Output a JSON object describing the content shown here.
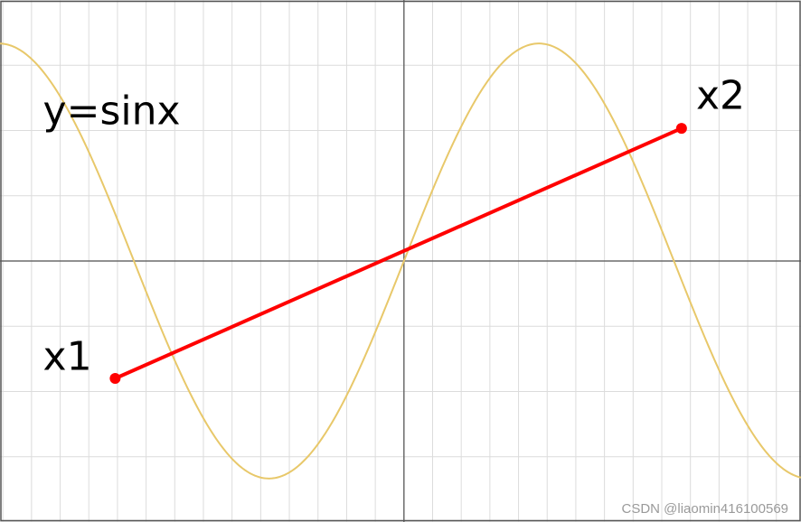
{
  "chart_data": {
    "type": "line",
    "title": "",
    "xlabel": "",
    "ylabel": "",
    "xlim": [
      -4.7,
      4.62
    ],
    "ylim": [
      -1.2,
      1.2
    ],
    "grid": true,
    "series": [
      {
        "function": "sin",
        "color": "#e8c86a",
        "x_range": [
          -4.7,
          4.62
        ]
      },
      {
        "x": [
          -3.36,
          3.23
        ],
        "y": [
          -0.54,
          0.61
        ],
        "color": "#ff0000",
        "markers": true
      }
    ],
    "annotations": [
      {
        "text": "y=sinx",
        "x": -4.2,
        "y": 0.63
      },
      {
        "text": "x1",
        "x": -4.2,
        "y": -0.5
      },
      {
        "text": "x2",
        "x": 3.4,
        "y": 0.7
      }
    ]
  },
  "watermark": "CSDN @liaomin416100569"
}
